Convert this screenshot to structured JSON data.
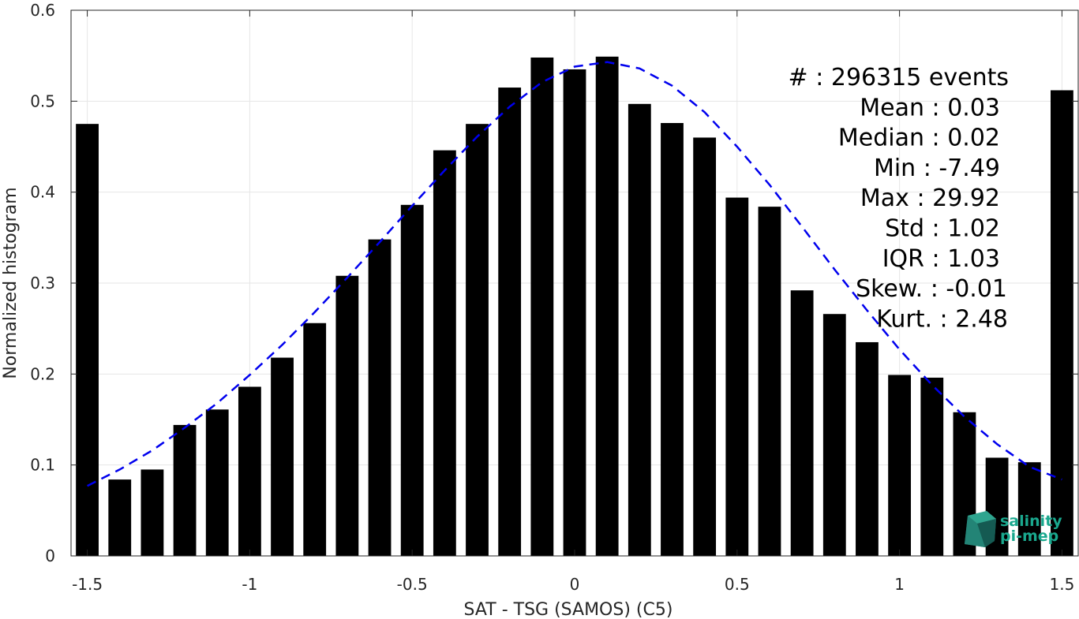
{
  "chart_data": {
    "type": "bar",
    "title": "",
    "xlabel": "SAT - TSG (SAMOS) (C5)",
    "ylabel": "Normalized histogram",
    "xlim": [
      -1.55,
      1.55
    ],
    "ylim": [
      0,
      0.6
    ],
    "grid": true,
    "x_ticks": [
      -1.5,
      -1,
      -0.5,
      0,
      0.5,
      1,
      1.5
    ],
    "x_tick_labels": [
      "-1.5",
      "-1",
      "-0.5",
      "0",
      "0.5",
      "1",
      "1.5"
    ],
    "y_ticks": [
      0,
      0.1,
      0.2,
      0.3,
      0.4,
      0.5,
      0.6
    ],
    "y_tick_labels": [
      "0",
      "0.1",
      "0.2",
      "0.3",
      "0.4",
      "0.5",
      "0.6"
    ],
    "bar_width": 0.07,
    "bars": {
      "x": [
        -1.5,
        -1.4,
        -1.3,
        -1.2,
        -1.1,
        -1.0,
        -0.9,
        -0.8,
        -0.7,
        -0.6,
        -0.5,
        -0.4,
        -0.3,
        -0.2,
        -0.1,
        0.0,
        0.1,
        0.2,
        0.3,
        0.4,
        0.5,
        0.6,
        0.7,
        0.8,
        0.9,
        1.0,
        1.1,
        1.2,
        1.3,
        1.4,
        1.5
      ],
      "values": [
        0.475,
        0.084,
        0.095,
        0.144,
        0.161,
        0.186,
        0.218,
        0.256,
        0.308,
        0.348,
        0.386,
        0.446,
        0.475,
        0.515,
        0.548,
        0.535,
        0.549,
        0.497,
        0.476,
        0.46,
        0.394,
        0.384,
        0.292,
        0.266,
        0.235,
        0.199,
        0.196,
        0.158,
        0.108,
        0.103,
        0.512
      ],
      "color": "#000000"
    },
    "fit_curve": {
      "style": "dashed",
      "color": "#0000ee",
      "x": [
        -1.5,
        -1.4,
        -1.3,
        -1.2,
        -1.1,
        -1.0,
        -0.9,
        -0.8,
        -0.7,
        -0.6,
        -0.5,
        -0.4,
        -0.3,
        -0.2,
        -0.1,
        0.0,
        0.1,
        0.2,
        0.3,
        0.4,
        0.5,
        0.6,
        0.7,
        0.8,
        0.9,
        1.0,
        1.1,
        1.2,
        1.3,
        1.4,
        1.5
      ],
      "y": [
        0.077,
        0.095,
        0.116,
        0.141,
        0.168,
        0.199,
        0.232,
        0.268,
        0.306,
        0.345,
        0.385,
        0.424,
        0.461,
        0.494,
        0.521,
        0.538,
        0.543,
        0.536,
        0.517,
        0.488,
        0.45,
        0.408,
        0.362,
        0.315,
        0.27,
        0.227,
        0.188,
        0.153,
        0.123,
        0.098,
        0.084
      ]
    },
    "annotations": [
      "#  : 296315 events",
      "Mean : 0.03",
      "Median : 0.02",
      "Min : -7.49",
      "Max : 29.92",
      "Std : 1.02",
      "IQR : 1.03",
      "Skew. : -0.01",
      "Kurt. : 2.48"
    ]
  },
  "logo": {
    "line1": "salinity",
    "line2": "pi-mep",
    "color": "#1aa88e"
  }
}
